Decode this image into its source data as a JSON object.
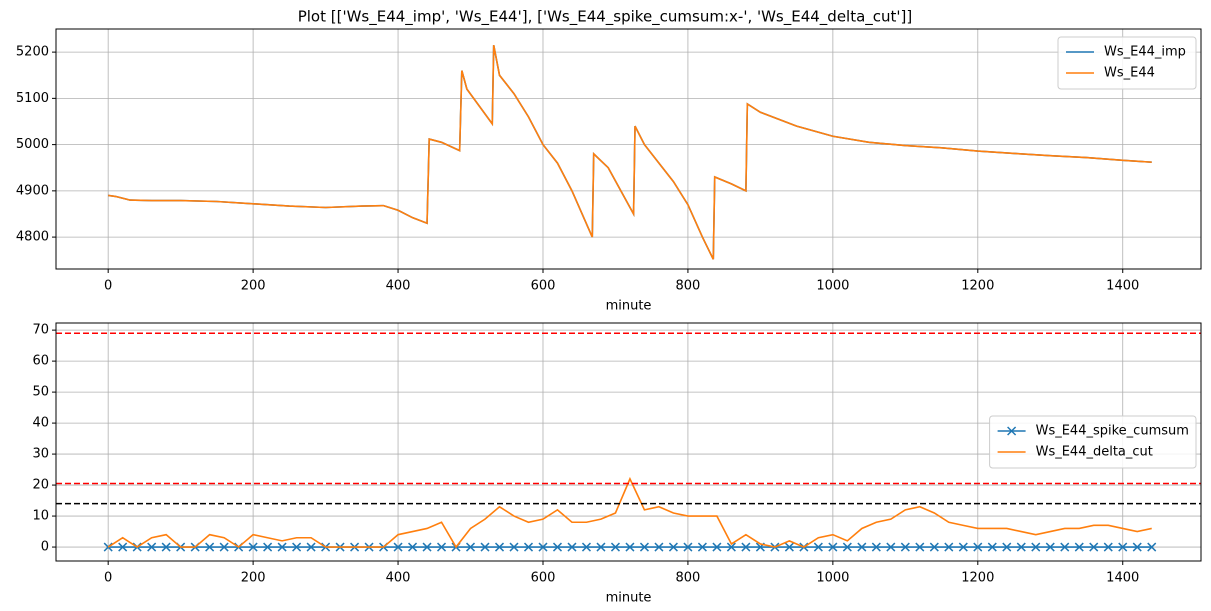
{
  "title": "Plot [['Ws_E44_imp', 'Ws_E44'], ['Ws_E44_spike_cumsum:x-', 'Ws_E44_delta_cut']]",
  "chart_data": [
    {
      "type": "line",
      "x_label": "minute",
      "x": [
        0,
        10,
        30,
        60,
        100,
        150,
        200,
        250,
        300,
        350,
        380,
        400,
        420,
        440,
        443,
        460,
        485,
        488,
        495,
        530,
        532,
        540,
        560,
        580,
        600,
        620,
        640,
        668,
        670,
        690,
        725,
        727,
        740,
        760,
        780,
        800,
        820,
        835,
        837,
        860,
        880,
        882,
        900,
        950,
        1000,
        1050,
        1100,
        1150,
        1200,
        1250,
        1300,
        1350,
        1400,
        1440
      ],
      "series": [
        {
          "name": "Ws_E44_imp",
          "color": "#1f77b4",
          "values": [
            4890,
            4888,
            4880,
            4879,
            4879,
            4877,
            4872,
            4867,
            4864,
            4867,
            4868,
            4858,
            4842,
            4830,
            5012,
            5005,
            4987,
            5160,
            5120,
            5045,
            5215,
            5150,
            5110,
            5060,
            5000,
            4960,
            4900,
            4800,
            4980,
            4950,
            4850,
            5040,
            5000,
            4960,
            4920,
            4870,
            4800,
            4752,
            4930,
            4915,
            4900,
            5088,
            5070,
            5040,
            5018,
            5005,
            4998,
            4993,
            4986,
            4981,
            4976,
            4972,
            4966,
            4962
          ]
        },
        {
          "name": "Ws_E44",
          "color": "#ff7f0e",
          "values": [
            4890,
            4888,
            4880,
            4879,
            4879,
            4877,
            4872,
            4867,
            4864,
            4867,
            4868,
            4858,
            4842,
            4830,
            5012,
            5005,
            4987,
            5160,
            5120,
            5045,
            5215,
            5150,
            5110,
            5060,
            5000,
            4960,
            4900,
            4800,
            4980,
            4950,
            4850,
            5040,
            5000,
            4960,
            4920,
            4870,
            4800,
            4752,
            4930,
            4915,
            4900,
            5088,
            5070,
            5040,
            5018,
            5005,
            4998,
            4993,
            4986,
            4981,
            4976,
            4972,
            4966,
            4962
          ]
        }
      ],
      "xlim": [
        -72,
        1508
      ],
      "xticks": [
        0,
        200,
        400,
        600,
        800,
        1000,
        1200,
        1400
      ],
      "ylim": [
        4731,
        5250
      ],
      "yticks": [
        4800,
        4900,
        5000,
        5100,
        5200
      ],
      "grid": true,
      "legend": "upper right"
    },
    {
      "type": "line",
      "x_label": "minute",
      "x": [
        0,
        20,
        40,
        60,
        80,
        100,
        120,
        140,
        160,
        180,
        200,
        220,
        240,
        260,
        280,
        300,
        320,
        340,
        360,
        380,
        400,
        420,
        440,
        460,
        480,
        500,
        520,
        540,
        560,
        580,
        600,
        620,
        640,
        660,
        680,
        700,
        720,
        740,
        760,
        780,
        800,
        820,
        840,
        860,
        880,
        900,
        920,
        940,
        960,
        980,
        1000,
        1020,
        1040,
        1060,
        1080,
        1100,
        1120,
        1140,
        1160,
        1180,
        1200,
        1220,
        1240,
        1260,
        1280,
        1300,
        1320,
        1340,
        1360,
        1380,
        1400,
        1420,
        1440
      ],
      "series": [
        {
          "name": "Ws_E44_spike_cumsum",
          "color": "#1f77b4",
          "marker": "x",
          "values": [
            0,
            0,
            0,
            0,
            0,
            0,
            0,
            0,
            0,
            0,
            0,
            0,
            0,
            0,
            0,
            0,
            0,
            0,
            0,
            0,
            0,
            0,
            0,
            0,
            0,
            0,
            0,
            0,
            0,
            0,
            0,
            0,
            0,
            0,
            0,
            0,
            0,
            0,
            0,
            0,
            0,
            0,
            0,
            0,
            0,
            0,
            0,
            0,
            0,
            0,
            0,
            0,
            0,
            0,
            0,
            0,
            0,
            0,
            0,
            0,
            0,
            0,
            0,
            0,
            0,
            0,
            0,
            0,
            0,
            0,
            0,
            0,
            0
          ]
        },
        {
          "name": "Ws_E44_delta_cut",
          "color": "#ff7f0e",
          "values": [
            0,
            3,
            0,
            3,
            4,
            0,
            0,
            4,
            3,
            0,
            4,
            3,
            2,
            3,
            3,
            0,
            0,
            0,
            0,
            0,
            4,
            5,
            6,
            8,
            0,
            6,
            9,
            13,
            10,
            8,
            9,
            12,
            8,
            8,
            9,
            11,
            22,
            12,
            13,
            11,
            10,
            10,
            10,
            1,
            4,
            1,
            0,
            2,
            0,
            3,
            4,
            2,
            6,
            8,
            9,
            12,
            13,
            11,
            8,
            7,
            6,
            6,
            6,
            5,
            4,
            5,
            6,
            6,
            7,
            7,
            6,
            5,
            6
          ]
        }
      ],
      "hlines": [
        {
          "value": 69,
          "color": "#ff0000"
        },
        {
          "value": 20.5,
          "color": "#ff0000"
        },
        {
          "value": 14,
          "color": "#000000"
        }
      ],
      "xlim": [
        -72,
        1508
      ],
      "xticks": [
        0,
        200,
        400,
        600,
        800,
        1000,
        1200,
        1400
      ],
      "ylim": [
        -4.5,
        72.3
      ],
      "yticks": [
        0,
        10,
        20,
        30,
        40,
        50,
        60,
        70
      ],
      "grid": true,
      "legend": "center right"
    }
  ]
}
